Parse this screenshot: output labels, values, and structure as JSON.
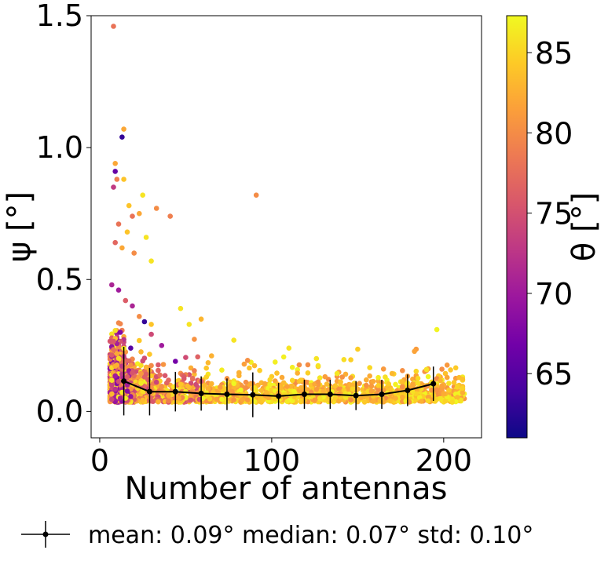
{
  "chart_data": {
    "type": "scatter",
    "xlabel": "Number of antennas",
    "ylabel": "ψ [°]",
    "colorbar_label": "θ [°]",
    "xlim": [
      -5,
      222
    ],
    "ylim": [
      -0.1,
      1.5
    ],
    "x_ticks": [
      0,
      100,
      200
    ],
    "x_tick_labels": [
      "0",
      "100",
      "200"
    ],
    "y_ticks": [
      0.0,
      0.5,
      1.0,
      1.5
    ],
    "y_tick_labels": [
      "0.0",
      "0.5",
      "1.0",
      "1.5"
    ],
    "colorbar_range": [
      61,
      87.3
    ],
    "colorbar_ticks": [
      65,
      70,
      75,
      80,
      85
    ],
    "colorbar_tick_labels": [
      "65",
      "70",
      "75",
      "80",
      "85"
    ],
    "colormap": "plasma",
    "colormap_stops": [
      "#0d0887",
      "#46039f",
      "#7201a8",
      "#9c179e",
      "#bd3786",
      "#d8576b",
      "#ed7953",
      "#fb9f3a",
      "#fdca26",
      "#f0f921"
    ],
    "scatter_points": [
      {
        "x": 8,
        "y": 1.46,
        "theta": 78
      },
      {
        "x": 14,
        "y": 1.07,
        "theta": 82
      },
      {
        "x": 13,
        "y": 1.04,
        "theta": 63
      },
      {
        "x": 9,
        "y": 0.94,
        "theta": 82
      },
      {
        "x": 9,
        "y": 0.91,
        "theta": 66
      },
      {
        "x": 10,
        "y": 0.88,
        "theta": 79
      },
      {
        "x": 14,
        "y": 0.88,
        "theta": 84
      },
      {
        "x": 8,
        "y": 0.85,
        "theta": 73
      },
      {
        "x": 25,
        "y": 0.82,
        "theta": 86
      },
      {
        "x": 17,
        "y": 0.78,
        "theta": 84
      },
      {
        "x": 33,
        "y": 0.77,
        "theta": 80
      },
      {
        "x": 23,
        "y": 0.75,
        "theta": 82
      },
      {
        "x": 19,
        "y": 0.74,
        "theta": 78
      },
      {
        "x": 41,
        "y": 0.74,
        "theta": 79
      },
      {
        "x": 11,
        "y": 0.71,
        "theta": 78
      },
      {
        "x": 16,
        "y": 0.68,
        "theta": 84
      },
      {
        "x": 27,
        "y": 0.66,
        "theta": 86
      },
      {
        "x": 9,
        "y": 0.64,
        "theta": 77
      },
      {
        "x": 13,
        "y": 0.62,
        "theta": 82
      },
      {
        "x": 20,
        "y": 0.6,
        "theta": 80
      },
      {
        "x": 30,
        "y": 0.57,
        "theta": 86
      },
      {
        "x": 91,
        "y": 0.82,
        "theta": 80
      },
      {
        "x": 7,
        "y": 0.48,
        "theta": 71
      },
      {
        "x": 11,
        "y": 0.46,
        "theta": 70
      },
      {
        "x": 15,
        "y": 0.42,
        "theta": 76
      },
      {
        "x": 19,
        "y": 0.4,
        "theta": 71
      },
      {
        "x": 26,
        "y": 0.34,
        "theta": 63
      },
      {
        "x": 23,
        "y": 0.36,
        "theta": 80
      },
      {
        "x": 47,
        "y": 0.39,
        "theta": 86
      },
      {
        "x": 59,
        "y": 0.35,
        "theta": 83
      },
      {
        "x": 52,
        "y": 0.33,
        "theta": 86
      },
      {
        "x": 30,
        "y": 0.33,
        "theta": 84
      },
      {
        "x": 78,
        "y": 0.27,
        "theta": 86
      },
      {
        "x": 110,
        "y": 0.24,
        "theta": 86
      },
      {
        "x": 196,
        "y": 0.31,
        "theta": 87
      },
      {
        "x": 126,
        "y": 0.2,
        "theta": 86
      },
      {
        "x": 12,
        "y": 0.3,
        "theta": 68
      },
      {
        "x": 36,
        "y": 0.25,
        "theta": 70
      },
      {
        "x": 44,
        "y": 0.19,
        "theta": 67
      },
      {
        "x": 18,
        "y": 0.24,
        "theta": 65
      }
    ],
    "dense_cloud_note": "dense band of points 0.0-0.2 across x 5-210",
    "errorbar_series": {
      "name": "mean: 0.09° median: 0.07°  std: 0.10°",
      "x": [
        14,
        29,
        44,
        59,
        74,
        89,
        104,
        119,
        134,
        149,
        164,
        179,
        194
      ],
      "y": [
        0.115,
        0.075,
        0.075,
        0.068,
        0.065,
        0.063,
        0.058,
        0.065,
        0.065,
        0.06,
        0.065,
        0.08,
        0.105
      ],
      "yerr": [
        0.13,
        0.09,
        0.075,
        0.065,
        0.06,
        0.085,
        0.05,
        0.055,
        0.055,
        0.055,
        0.055,
        0.06,
        0.065
      ]
    },
    "legend": {
      "placement": "bottom",
      "label": "mean: 0.09° median: 0.07°  std: 0.10°"
    }
  }
}
